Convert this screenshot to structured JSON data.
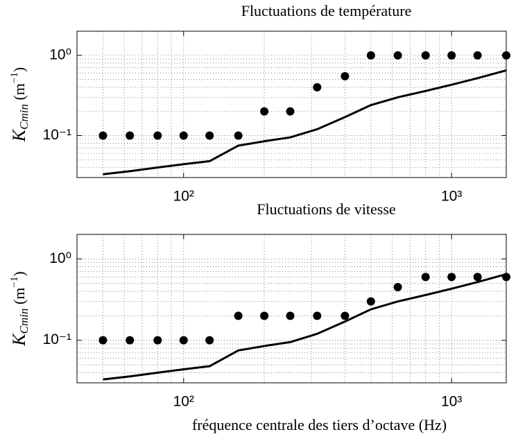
{
  "chart_data": [
    {
      "type": "scatter-line",
      "title": "Fluctuations de température",
      "ylabel": [
        "K",
        "Cmin",
        " (m",
        "−1",
        ")"
      ],
      "xscale": "log",
      "yscale": "log",
      "grid": true,
      "x": [
        50,
        63,
        80,
        100,
        125,
        160,
        200,
        250,
        315,
        400,
        500,
        630,
        800,
        1000,
        1250,
        1600
      ],
      "xlim": [
        40,
        1600
      ],
      "ylim": [
        0.03,
        2
      ],
      "xticks": [
        {
          "value": 100,
          "label": "10²"
        },
        {
          "value": 1000,
          "label": "10³"
        }
      ],
      "yticks": [
        {
          "value": 0.1,
          "label": "10⁻¹"
        },
        {
          "value": 1,
          "label": "10⁰"
        }
      ],
      "series": [
        {
          "style": "dots",
          "color": "#000",
          "values": [
            0.1,
            0.1,
            0.1,
            0.1,
            0.1,
            0.1,
            0.2,
            0.2,
            0.4,
            0.55,
            1,
            1,
            1,
            1,
            1,
            1
          ]
        },
        {
          "style": "line",
          "color": "#000",
          "values": [
            0.033,
            0.036,
            0.04,
            0.044,
            0.048,
            0.075,
            0.085,
            0.095,
            0.12,
            0.17,
            0.24,
            0.3,
            0.36,
            0.43,
            0.52,
            0.65
          ]
        }
      ]
    },
    {
      "type": "scatter-line",
      "title": "Fluctuations de vitesse",
      "ylabel": [
        "K",
        "Cmin",
        " (m",
        "−1",
        ")"
      ],
      "xlabel": "fréquence centrale des tiers d’octave (Hz)",
      "xscale": "log",
      "yscale": "log",
      "grid": true,
      "x": [
        50,
        63,
        80,
        100,
        125,
        160,
        200,
        250,
        315,
        400,
        500,
        630,
        800,
        1000,
        1250,
        1600
      ],
      "xlim": [
        40,
        1600
      ],
      "ylim": [
        0.03,
        2
      ],
      "xticks": [
        {
          "value": 100,
          "label": "10²"
        },
        {
          "value": 1000,
          "label": "10³"
        }
      ],
      "yticks": [
        {
          "value": 0.1,
          "label": "10⁻¹"
        },
        {
          "value": 1,
          "label": "10⁰"
        }
      ],
      "series": [
        {
          "style": "dots",
          "color": "#000",
          "values": [
            0.1,
            0.1,
            0.1,
            0.1,
            0.1,
            0.2,
            0.2,
            0.2,
            0.2,
            0.2,
            0.3,
            0.45,
            0.6,
            0.6,
            0.6,
            0.6
          ]
        },
        {
          "style": "line",
          "color": "#000",
          "values": [
            0.033,
            0.036,
            0.04,
            0.044,
            0.048,
            0.075,
            0.085,
            0.095,
            0.12,
            0.17,
            0.24,
            0.3,
            0.36,
            0.43,
            0.52,
            0.65
          ]
        }
      ]
    }
  ]
}
